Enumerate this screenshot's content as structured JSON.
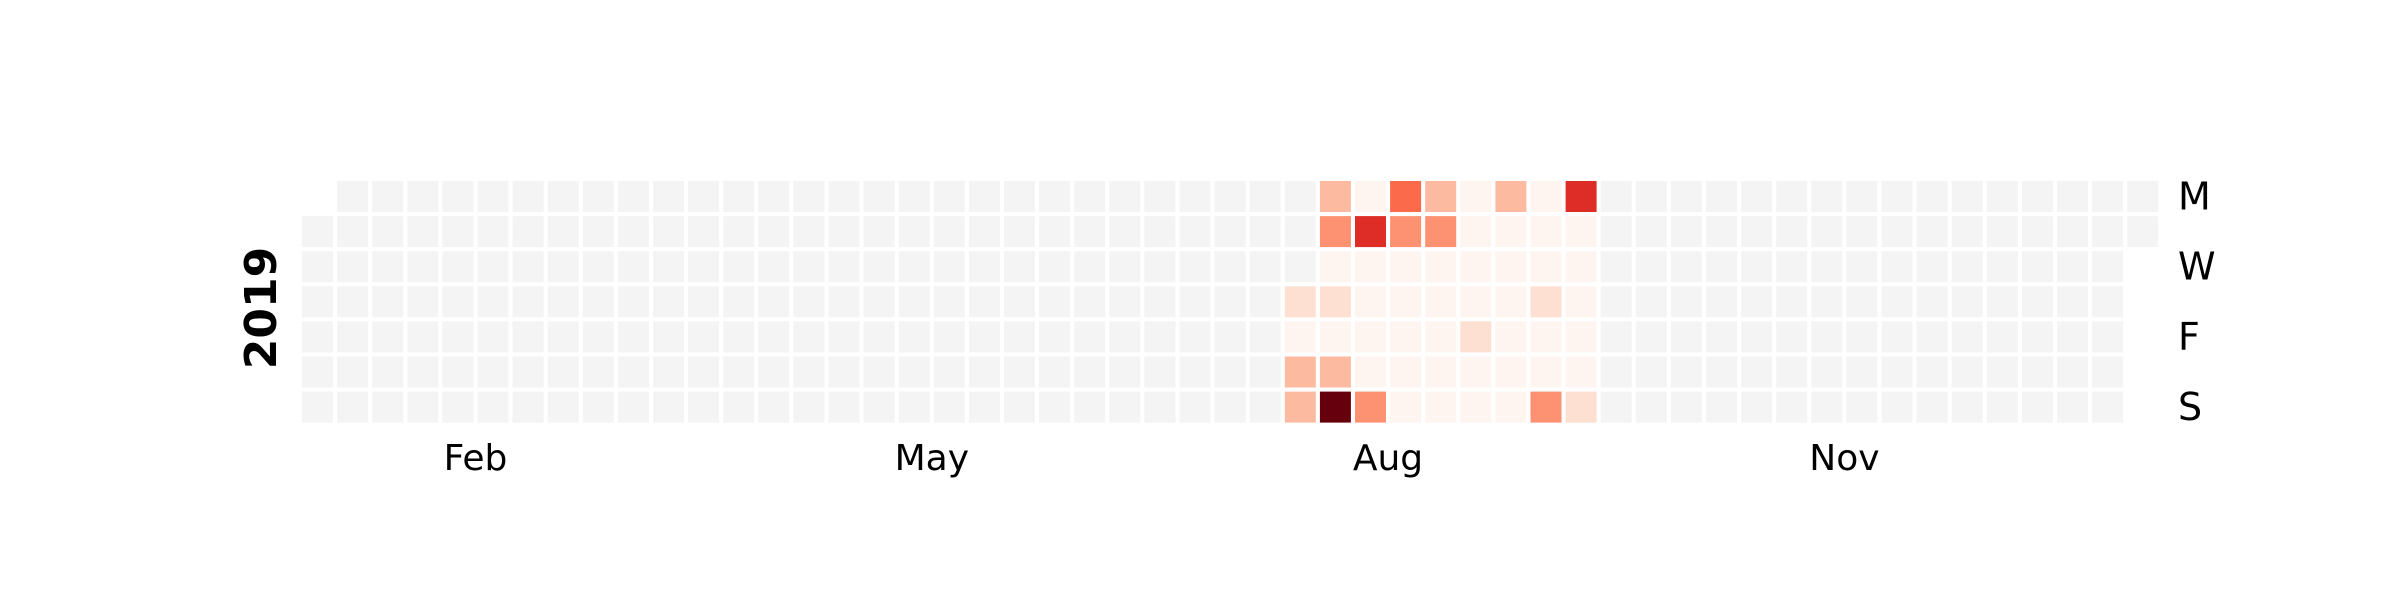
{
  "chart_data": {
    "type": "heatmap",
    "year": "2019",
    "month_ticks": [
      "Feb",
      "May",
      "Aug",
      "Nov"
    ],
    "weekday_ticks": [
      "M",
      "W",
      "F",
      "S"
    ],
    "empty_color": "#f4f4f4",
    "color_scale": [
      "#fff5f0",
      "#fee0d2",
      "#fcbba1",
      "#fc9272",
      "#fb6a4a",
      "#de2d26",
      "#a50f15",
      "#67000d"
    ],
    "active_columns": [
      {
        "week": 28,
        "levels": [
          null,
          null,
          null,
          1,
          0,
          2,
          2
        ]
      },
      {
        "week": 29,
        "levels": [
          2,
          3,
          0,
          1,
          0,
          2,
          7
        ]
      },
      {
        "week": 30,
        "levels": [
          0,
          5,
          0,
          0,
          0,
          0,
          3
        ]
      },
      {
        "week": 31,
        "levels": [
          4,
          3,
          0,
          0,
          0,
          0,
          0
        ]
      },
      {
        "week": 32,
        "levels": [
          2,
          3,
          0,
          0,
          0,
          0,
          0
        ]
      },
      {
        "week": 33,
        "levels": [
          0,
          0,
          0,
          0,
          1,
          0,
          0
        ]
      },
      {
        "week": 34,
        "levels": [
          2,
          0,
          0,
          0,
          0,
          0,
          0
        ]
      },
      {
        "week": 35,
        "levels": [
          0,
          0,
          0,
          1,
          0,
          0,
          3
        ]
      },
      {
        "week": 36,
        "levels": [
          5,
          0,
          0,
          0,
          0,
          0,
          1
        ]
      }
    ]
  }
}
